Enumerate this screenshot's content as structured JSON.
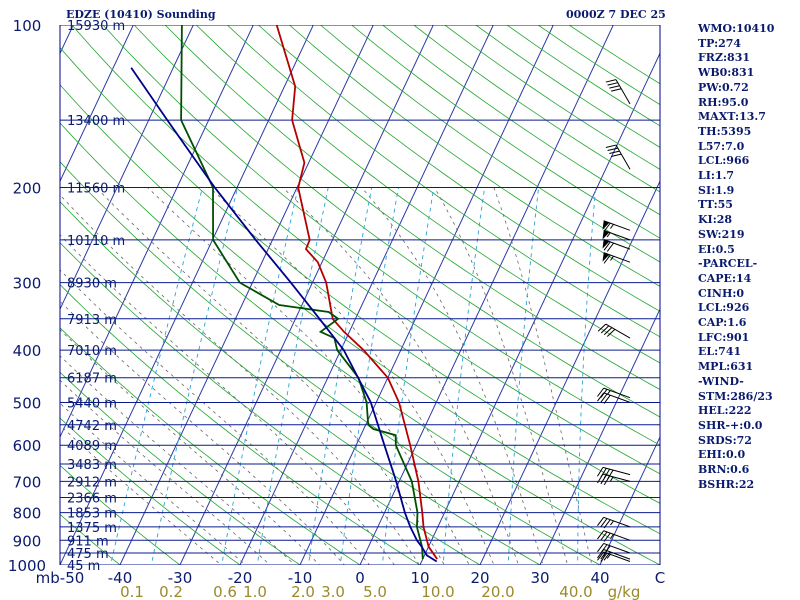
{
  "header": {
    "title": "EDZE (10410) Sounding",
    "datetime": "0000Z  7 DEC 25"
  },
  "stats": [
    "WMO:10410",
    "TP:274",
    "FRZ:831",
    "WB0:831",
    "PW:0.72",
    "RH:95.0",
    "MAXT:13.7",
    "TH:5395",
    "L57:7.0",
    "LCL:966",
    "LI:1.7",
    "SI:1.9",
    "TT:55",
    "KI:28",
    "SW:219",
    "EI:0.5",
    "-PARCEL-",
    "CAPE:14",
    "CINH:0",
    "LCL:926",
    "CAP:1.6",
    "LFC:901",
    "EL:741",
    "MPL:631",
    "-WIND-",
    "STM:286/23",
    "HEL:222",
    "SHR-+:0.0",
    "SRDS:72",
    "EHI:0.0",
    "BRN:0.6",
    "BSHR:22"
  ],
  "chart_data": {
    "type": "line",
    "title": "EDZE (10410) Sounding",
    "xlabel": "C",
    "ylabel": "mb",
    "xlim": [
      -50,
      50
    ],
    "ylim": [
      1000,
      100
    ],
    "pressure_levels": [
      {
        "p": 100,
        "label": "100",
        "height": "15930 m"
      },
      {
        "p": 150,
        "label": "",
        "height": "13400 m"
      },
      {
        "p": 200,
        "label": "200",
        "height": "11560 m"
      },
      {
        "p": 250,
        "label": "",
        "height": "10110 m"
      },
      {
        "p": 300,
        "label": "300",
        "height": "8930 m"
      },
      {
        "p": 350,
        "label": "",
        "height": "7913 m"
      },
      {
        "p": 400,
        "label": "400",
        "height": "7010 m"
      },
      {
        "p": 450,
        "label": "",
        "height": "6187 m"
      },
      {
        "p": 500,
        "label": "500",
        "height": "5440 m"
      },
      {
        "p": 550,
        "label": "",
        "height": "4742 m"
      },
      {
        "p": 600,
        "label": "600",
        "height": "4089 m"
      },
      {
        "p": 650,
        "label": "",
        "height": "3483 m"
      },
      {
        "p": 700,
        "label": "700",
        "height": "2912 m"
      },
      {
        "p": 750,
        "label": "",
        "height": "2366 m"
      },
      {
        "p": 800,
        "label": "800",
        "height": "1853 m"
      },
      {
        "p": 850,
        "label": "",
        "height": "1375 m"
      },
      {
        "p": 900,
        "label": "900",
        "height": "911 m"
      },
      {
        "p": 950,
        "label": "",
        "height": "475 m"
      },
      {
        "p": 1000,
        "label": "1000",
        "height": "45 m"
      }
    ],
    "x_ticks": [
      {
        "v": -50,
        "label": "mb-50"
      },
      {
        "v": -40,
        "label": "-40"
      },
      {
        "v": -30,
        "label": "-30"
      },
      {
        "v": -20,
        "label": "-20"
      },
      {
        "v": -10,
        "label": "-10"
      },
      {
        "v": 0,
        "label": "0"
      },
      {
        "v": 10,
        "label": "10"
      },
      {
        "v": 20,
        "label": "20"
      },
      {
        "v": 30,
        "label": "30"
      },
      {
        "v": 40,
        "label": "40"
      },
      {
        "v": 50,
        "label": "C"
      }
    ],
    "mixing_ratio_labels": [
      {
        "w": "0.1",
        "tx": -38
      },
      {
        "w": "0.2",
        "tx": -31.5
      },
      {
        "w": "0.6",
        "tx": -22.5
      },
      {
        "w": "1.0",
        "tx": -17.5
      },
      {
        "w": "2.0",
        "tx": -9.5
      },
      {
        "w": "3.0",
        "tx": -4.5
      },
      {
        "w": "5.0",
        "tx": 2.5
      },
      {
        "w": "10.0",
        "tx": 13
      },
      {
        "w": "20.0",
        "tx": 23
      },
      {
        "w": "40.0",
        "tx": 36
      },
      {
        "w": "g/kg",
        "tx": 44
      }
    ],
    "series": [
      {
        "name": "temperature",
        "color": "#b50000",
        "points": [
          {
            "p": 975,
            "t": 12.4
          },
          {
            "p": 925,
            "t": 10.0
          },
          {
            "p": 850,
            "t": 7.6
          },
          {
            "p": 800,
            "t": 6.3
          },
          {
            "p": 700,
            "t": 3.2
          },
          {
            "p": 600,
            "t": -1.0
          },
          {
            "p": 500,
            "t": -6.2
          },
          {
            "p": 450,
            "t": -10.0
          },
          {
            "p": 400,
            "t": -16.2
          },
          {
            "p": 370,
            "t": -20.9
          },
          {
            "p": 350,
            "t": -23.8
          },
          {
            "p": 300,
            "t": -27.7
          },
          {
            "p": 275,
            "t": -30.7
          },
          {
            "p": 260,
            "t": -33.7
          },
          {
            "p": 250,
            "t": -33.8
          },
          {
            "p": 200,
            "t": -39.8
          },
          {
            "p": 180,
            "t": -40.7
          },
          {
            "p": 150,
            "t": -46.1
          },
          {
            "p": 130,
            "t": -48.2
          },
          {
            "p": 100,
            "t": -56.1
          }
        ]
      },
      {
        "name": "dewpoint",
        "color": "#004f00",
        "points": [
          {
            "p": 975,
            "t": 10.0
          },
          {
            "p": 925,
            "t": 8.9
          },
          {
            "p": 850,
            "t": 6.5
          },
          {
            "p": 800,
            "t": 5.5
          },
          {
            "p": 700,
            "t": 2.1
          },
          {
            "p": 600,
            "t": -3.4
          },
          {
            "p": 575,
            "t": -4.2
          },
          {
            "p": 560,
            "t": -8.4
          },
          {
            "p": 550,
            "t": -9.6
          },
          {
            "p": 500,
            "t": -11.6
          },
          {
            "p": 450,
            "t": -14.9
          },
          {
            "p": 400,
            "t": -20.6
          },
          {
            "p": 380,
            "t": -22.0
          },
          {
            "p": 370,
            "t": -24.8
          },
          {
            "p": 350,
            "t": -22.9
          },
          {
            "p": 340,
            "t": -25.0
          },
          {
            "p": 330,
            "t": -33.8
          },
          {
            "p": 300,
            "t": -42.1
          },
          {
            "p": 250,
            "t": -49.9
          },
          {
            "p": 200,
            "t": -54.0
          },
          {
            "p": 150,
            "t": -64.6
          },
          {
            "p": 100,
            "t": -71.9
          }
        ]
      },
      {
        "name": "parcel",
        "color": "#00008b",
        "points": [
          {
            "p": 985,
            "t": 12.5
          },
          {
            "p": 960,
            "t": 10.4
          },
          {
            "p": 926,
            "t": 8.9
          },
          {
            "p": 901,
            "t": 7.6
          },
          {
            "p": 850,
            "t": 5.4
          },
          {
            "p": 800,
            "t": 3.4
          },
          {
            "p": 700,
            "t": -0.5
          },
          {
            "p": 600,
            "t": -5.3
          },
          {
            "p": 500,
            "t": -10.9
          },
          {
            "p": 400,
            "t": -19.5
          },
          {
            "p": 350,
            "t": -26.0
          },
          {
            "p": 300,
            "t": -33.6
          },
          {
            "p": 250,
            "t": -42.8
          },
          {
            "p": 200,
            "t": -53.7
          },
          {
            "p": 150,
            "t": -66.9
          },
          {
            "p": 120,
            "t": -77.0
          }
        ]
      }
    ],
    "wind_barbs": [
      {
        "p": 985,
        "dir": 290,
        "kt": 25
      },
      {
        "p": 975,
        "dir": 290,
        "kt": 30
      },
      {
        "p": 950,
        "dir": 290,
        "kt": 30
      },
      {
        "p": 900,
        "dir": 290,
        "kt": 35
      },
      {
        "p": 850,
        "dir": 290,
        "kt": 35
      },
      {
        "p": 700,
        "dir": 285,
        "kt": 35
      },
      {
        "p": 680,
        "dir": 285,
        "kt": 40
      },
      {
        "p": 500,
        "dir": 290,
        "kt": 30
      },
      {
        "p": 490,
        "dir": 290,
        "kt": 25
      },
      {
        "p": 380,
        "dir": 300,
        "kt": 40
      },
      {
        "p": 275,
        "dir": 290,
        "kt": 65
      },
      {
        "p": 260,
        "dir": 290,
        "kt": 70
      },
      {
        "p": 250,
        "dir": 290,
        "kt": 55
      },
      {
        "p": 240,
        "dir": 290,
        "kt": 65
      },
      {
        "p": 185,
        "dir": 330,
        "kt": 40
      },
      {
        "p": 140,
        "dir": 330,
        "kt": 40
      }
    ]
  }
}
